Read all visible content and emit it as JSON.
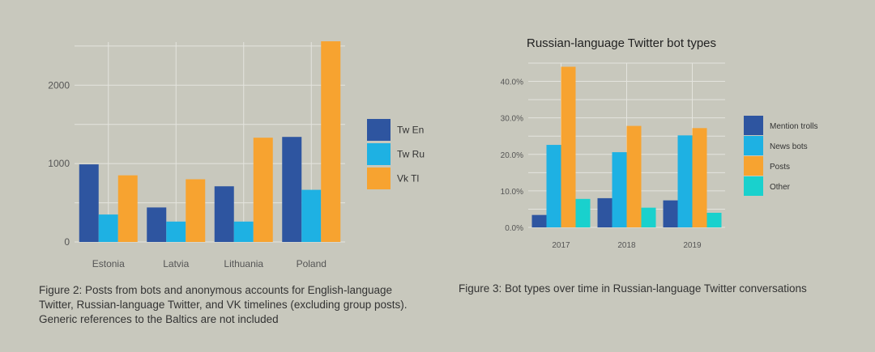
{
  "colors": {
    "background": "#c8c8bd",
    "grid": "#e4e4de",
    "axis_text": "#555555",
    "dark_blue": "#2e55a0",
    "light_blue": "#1eb1e3",
    "orange": "#f7a330",
    "teal": "#19d1cd"
  },
  "chart_data": [
    {
      "id": "fig2",
      "type": "bar",
      "title": "",
      "xlabel": "",
      "ylabel": "",
      "categories": [
        "Estonia",
        "Latvia",
        "Lithuania",
        "Poland"
      ],
      "ylim": [
        0,
        2550
      ],
      "yticks": [
        0,
        1000,
        2000
      ],
      "ytick_labels": [
        "0",
        "1000",
        "2000"
      ],
      "grid": true,
      "legend_position": "right",
      "series": [
        {
          "name": "Tw En",
          "color": "#2e55a0",
          "values": [
            990,
            440,
            710,
            1340
          ]
        },
        {
          "name": "Tw Ru",
          "color": "#1eb1e3",
          "values": [
            350,
            260,
            260,
            665
          ]
        },
        {
          "name": "Vk Tl",
          "color": "#f7a330",
          "values": [
            850,
            800,
            1330,
            2560
          ]
        }
      ]
    },
    {
      "id": "fig3",
      "type": "bar",
      "title": "Russian-language Twitter bot types",
      "xlabel": "",
      "ylabel": "",
      "categories": [
        "2017",
        "2018",
        "2019"
      ],
      "ylim": [
        0,
        0.45
      ],
      "yticks": [
        0,
        0.1,
        0.2,
        0.3,
        0.4
      ],
      "ytick_labels": [
        "0.0%",
        "10.0%",
        "20.0%",
        "30.0%",
        "40.0%"
      ],
      "grid": true,
      "legend_position": "right",
      "series": [
        {
          "name": "Mention trolls",
          "color": "#2e55a0",
          "values": [
            0.034,
            0.08,
            0.074
          ]
        },
        {
          "name": "News bots",
          "color": "#1eb1e3",
          "values": [
            0.226,
            0.206,
            0.252
          ]
        },
        {
          "name": "Posts",
          "color": "#f7a330",
          "values": [
            0.44,
            0.278,
            0.272
          ]
        },
        {
          "name": "Other",
          "color": "#19d1cd",
          "values": [
            0.078,
            0.054,
            0.04
          ]
        }
      ]
    }
  ],
  "captions": {
    "fig2": "Figure 2: Posts from bots and anonymous accounts for English-language Twitter, Russian-language Twitter, and VK timelines (excluding group posts). Generic references to the Baltics are not included",
    "fig3": "Figure 3: Bot types over time in Russian-language Twitter conversations"
  }
}
